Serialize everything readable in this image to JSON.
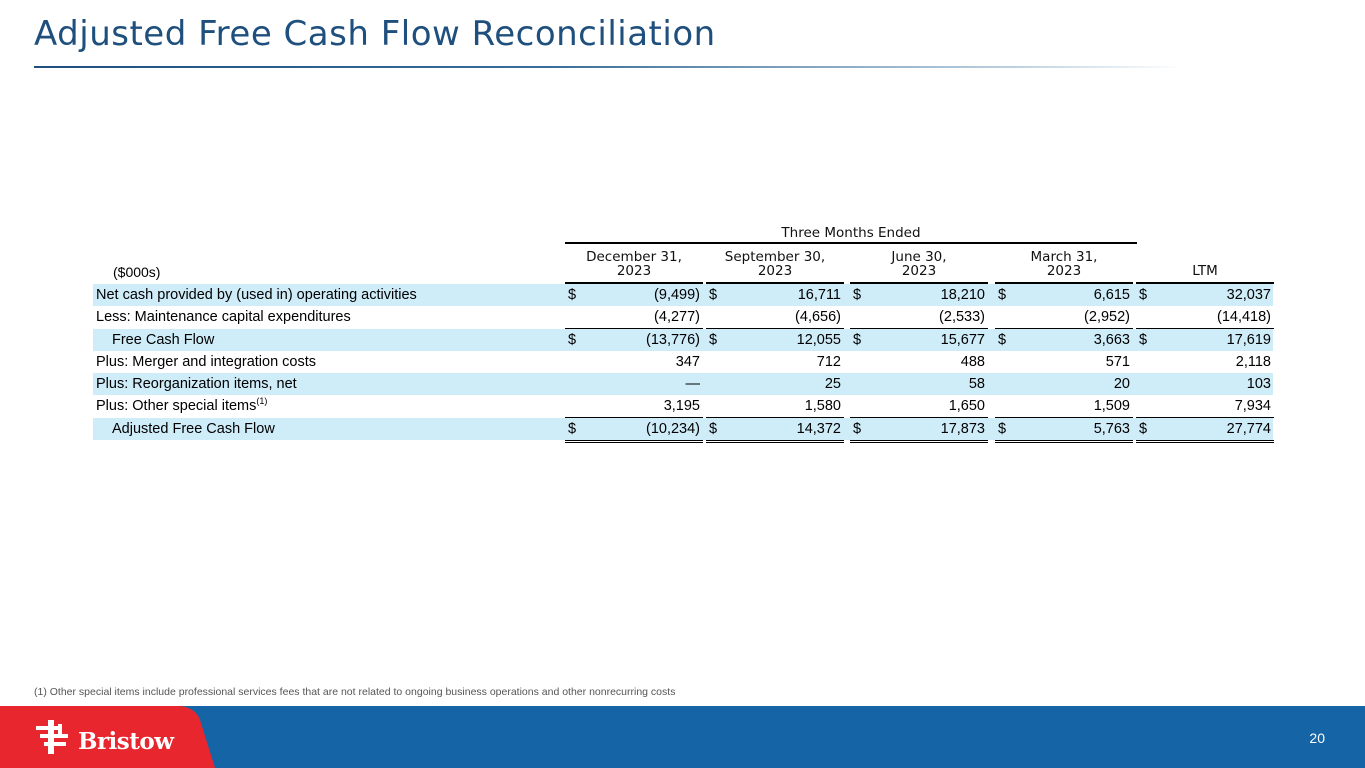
{
  "title": "Adjusted Free Cash Flow Reconciliation",
  "header": {
    "group": "Three Months Ended",
    "units": "($000s)",
    "columns": [
      {
        "line1": "December 31,",
        "line2": "2023"
      },
      {
        "line1": "September 30,",
        "line2": "2023"
      },
      {
        "line1": "June 30,",
        "line2": "2023"
      },
      {
        "line1": "March 31,",
        "line2": "2023"
      },
      {
        "line1": "",
        "line2": "LTM"
      }
    ]
  },
  "rows": [
    {
      "label": "Net cash provided by (used in) operating activities",
      "sup": "",
      "values": [
        "(9,499)",
        "16,711",
        "18,210",
        "6,615",
        "32,037"
      ]
    },
    {
      "label": "Less: Maintenance capital expenditures",
      "sup": "",
      "values": [
        "(4,277)",
        "(4,656)",
        "(2,533)",
        "(2,952)",
        "(14,418)"
      ]
    },
    {
      "label": "Free Cash Flow",
      "sup": "",
      "values": [
        "(13,776)",
        "12,055",
        "15,677",
        "3,663",
        "17,619"
      ]
    },
    {
      "label": "Plus: Merger and integration costs",
      "sup": "",
      "values": [
        "347",
        "712",
        "488",
        "571",
        "2,118"
      ]
    },
    {
      "label": "Plus: Reorganization items, net",
      "sup": "",
      "values": [
        "—",
        "25",
        "58",
        "20",
        "103"
      ]
    },
    {
      "label": "Plus: Other special items",
      "sup": "(1)",
      "values": [
        "3,195",
        "1,580",
        "1,650",
        "1,509",
        "7,934"
      ]
    },
    {
      "label": "Adjusted Free Cash Flow",
      "sup": "",
      "values": [
        "(10,234)",
        "14,372",
        "17,873",
        "5,763",
        "27,774"
      ]
    }
  ],
  "currency_symbol": "$",
  "footnote": "(1) Other special items include professional services fees that are not related to ongoing business operations and other nonrecurring costs",
  "footer": {
    "logo_text": "Bristow",
    "page_number": "20"
  },
  "colors": {
    "title": "#1e4f7d",
    "row_shade": "#cfecf9",
    "footer_blue": "#1565a6",
    "footer_red": "#e8262d"
  }
}
